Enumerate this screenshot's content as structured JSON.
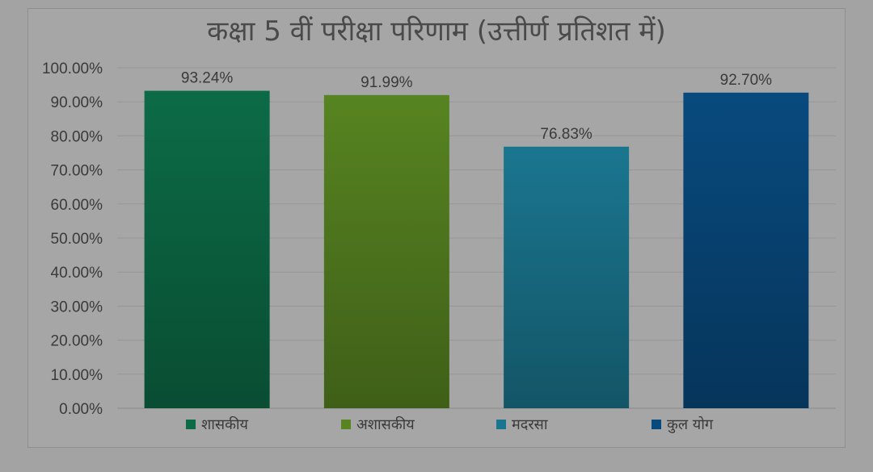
{
  "chart_data": {
    "type": "bar",
    "title": "कक्षा 5 वीं परीक्षा परिणाम (उत्तीर्ण प्रतिशत में)",
    "categories": [
      "शासकीय",
      "अशासकीय",
      "मदरसा",
      "कुल योग"
    ],
    "values": [
      93.24,
      91.99,
      76.83,
      92.7
    ],
    "value_labels": [
      "93.24%",
      "91.99%",
      "76.83%",
      "92.70%"
    ],
    "colors": [
      "#0c6b47",
      "#578421",
      "#1a768f",
      "#084a7e"
    ],
    "ylim": [
      0,
      100
    ],
    "yticks": [
      "0.00%",
      "10.00%",
      "20.00%",
      "30.00%",
      "40.00%",
      "50.00%",
      "60.00%",
      "70.00%",
      "80.00%",
      "90.00%",
      "100.00%"
    ],
    "xlabel": "",
    "ylabel": "",
    "grid": true,
    "legend": "bottom"
  }
}
